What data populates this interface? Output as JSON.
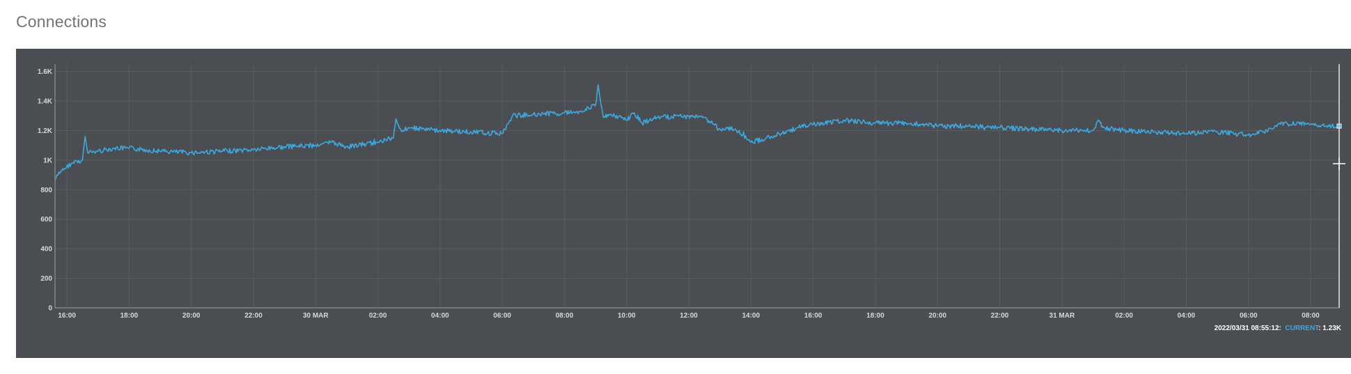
{
  "header": {
    "title": "Connections"
  },
  "status": {
    "timestamp": "2022/03/31 08:55:12:",
    "series_label": "CURRENT",
    "value": ": 1.23K"
  },
  "colors": {
    "panel_bg": "#4a4e53",
    "line": "#40a8e0",
    "grid": "#585d63",
    "axis": "#9aa0a6",
    "cursor": "#e6e8ea"
  },
  "chart_data": {
    "type": "line",
    "title": "Connections",
    "xlabel": "",
    "ylabel": "",
    "grid": true,
    "ylim": [
      0,
      1650
    ],
    "yticks": [
      {
        "v": 0,
        "label": "0"
      },
      {
        "v": 200,
        "label": "200"
      },
      {
        "v": 400,
        "label": "400"
      },
      {
        "v": 600,
        "label": "600"
      },
      {
        "v": 800,
        "label": "800"
      },
      {
        "v": 1000,
        "label": "1K"
      },
      {
        "v": 1200,
        "label": "1.2K"
      },
      {
        "v": 1400,
        "label": "1.4K"
      },
      {
        "v": 1600,
        "label": "1.6K"
      }
    ],
    "xlim": [
      "2022-03-29T15:37",
      "2022-03-31T08:55"
    ],
    "xticks": [
      {
        "t": "2022-03-29T16:00",
        "label": "16:00"
      },
      {
        "t": "2022-03-29T18:00",
        "label": "18:00"
      },
      {
        "t": "2022-03-29T20:00",
        "label": "20:00"
      },
      {
        "t": "2022-03-29T22:00",
        "label": "22:00"
      },
      {
        "t": "2022-03-30T00:00",
        "label": "30 MAR"
      },
      {
        "t": "2022-03-30T02:00",
        "label": "02:00"
      },
      {
        "t": "2022-03-30T04:00",
        "label": "04:00"
      },
      {
        "t": "2022-03-30T06:00",
        "label": "06:00"
      },
      {
        "t": "2022-03-30T08:00",
        "label": "08:00"
      },
      {
        "t": "2022-03-30T10:00",
        "label": "10:00"
      },
      {
        "t": "2022-03-30T12:00",
        "label": "12:00"
      },
      {
        "t": "2022-03-30T14:00",
        "label": "14:00"
      },
      {
        "t": "2022-03-30T16:00",
        "label": "16:00"
      },
      {
        "t": "2022-03-30T18:00",
        "label": "18:00"
      },
      {
        "t": "2022-03-30T20:00",
        "label": "20:00"
      },
      {
        "t": "2022-03-30T22:00",
        "label": "22:00"
      },
      {
        "t": "2022-03-31T00:00",
        "label": "31 MAR"
      },
      {
        "t": "2022-03-31T02:00",
        "label": "02:00"
      },
      {
        "t": "2022-03-31T04:00",
        "label": "04:00"
      },
      {
        "t": "2022-03-31T06:00",
        "label": "06:00"
      },
      {
        "t": "2022-03-31T08:00",
        "label": "08:00"
      }
    ],
    "series": [
      {
        "x": [
          "2022-03-29T15:37",
          "2022-03-29T15:50",
          "2022-03-29T16:10",
          "2022-03-29T16:30",
          "2022-03-29T16:35",
          "2022-03-29T16:40",
          "2022-03-29T17:00",
          "2022-03-29T17:30",
          "2022-03-29T18:00",
          "2022-03-29T19:00",
          "2022-03-29T20:00",
          "2022-03-29T21:00",
          "2022-03-29T22:00",
          "2022-03-29T23:00",
          "2022-03-30T00:00",
          "2022-03-30T00:30",
          "2022-03-30T01:00",
          "2022-03-30T02:00",
          "2022-03-30T02:30",
          "2022-03-30T02:35",
          "2022-03-30T02:45",
          "2022-03-30T03:00",
          "2022-03-30T03:30",
          "2022-03-30T04:00",
          "2022-03-30T05:00",
          "2022-03-30T06:00",
          "2022-03-30T06:15",
          "2022-03-30T06:20",
          "2022-03-30T07:00",
          "2022-03-30T08:00",
          "2022-03-30T08:30",
          "2022-03-30T09:00",
          "2022-03-30T09:05",
          "2022-03-30T09:15",
          "2022-03-30T09:30",
          "2022-03-30T10:00",
          "2022-03-30T10:15",
          "2022-03-30T10:30",
          "2022-03-30T11:00",
          "2022-03-30T12:00",
          "2022-03-30T12:30",
          "2022-03-30T13:00",
          "2022-03-30T13:30",
          "2022-03-30T14:00",
          "2022-03-30T14:30",
          "2022-03-30T15:00",
          "2022-03-30T15:30",
          "2022-03-30T16:00",
          "2022-03-30T17:00",
          "2022-03-30T18:00",
          "2022-03-30T19:00",
          "2022-03-30T20:00",
          "2022-03-30T21:00",
          "2022-03-30T22:00",
          "2022-03-30T23:00",
          "2022-03-31T00:00",
          "2022-03-31T01:00",
          "2022-03-31T01:10",
          "2022-03-31T01:20",
          "2022-03-31T02:00",
          "2022-03-31T03:00",
          "2022-03-31T04:00",
          "2022-03-31T05:00",
          "2022-03-31T06:00",
          "2022-03-31T06:30",
          "2022-03-31T07:00",
          "2022-03-31T08:00",
          "2022-03-31T08:30",
          "2022-03-31T08:55"
        ],
        "y": [
          870,
          930,
          980,
          1000,
          1160,
          1050,
          1060,
          1080,
          1080,
          1060,
          1050,
          1060,
          1070,
          1090,
          1100,
          1120,
          1090,
          1120,
          1150,
          1280,
          1200,
          1220,
          1210,
          1200,
          1190,
          1180,
          1270,
          1300,
          1310,
          1320,
          1330,
          1370,
          1510,
          1290,
          1310,
          1270,
          1320,
          1250,
          1290,
          1300,
          1290,
          1210,
          1210,
          1120,
          1150,
          1180,
          1220,
          1240,
          1270,
          1250,
          1250,
          1230,
          1230,
          1220,
          1210,
          1200,
          1200,
          1270,
          1220,
          1200,
          1190,
          1180,
          1190,
          1170,
          1190,
          1250,
          1240,
          1230,
          1230
        ]
      }
    ]
  }
}
